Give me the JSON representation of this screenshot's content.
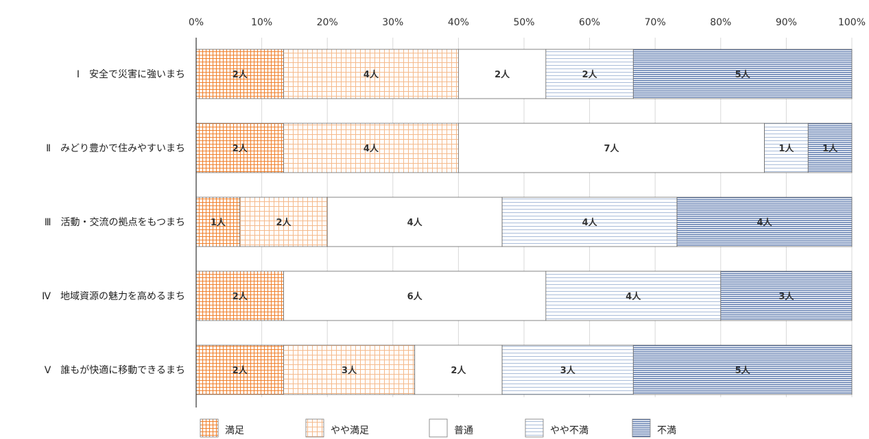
{
  "chart_data": {
    "type": "bar",
    "orientation": "horizontal",
    "stacked": "percent",
    "categories": [
      "Ⅰ　安全で災害に強いまち",
      "Ⅱ　みどり豊かで住みやすいまち",
      "Ⅲ　活動・交流の拠点をもつまち",
      "Ⅳ　地域資源の魅力を高めるまち",
      "Ⅴ　誰もが快適に移動できるまち"
    ],
    "series": [
      {
        "name": "満足",
        "values": [
          2,
          2,
          1,
          2,
          2
        ],
        "color": "#f28c3c",
        "pattern": "grid-dense"
      },
      {
        "name": "やや満足",
        "values": [
          4,
          4,
          2,
          0,
          3
        ],
        "color": "#f5c49a",
        "pattern": "grid-sparse"
      },
      {
        "name": "普通",
        "values": [
          2,
          7,
          4,
          6,
          2
        ],
        "color": "#ffffff",
        "pattern": "none"
      },
      {
        "name": "やや不満",
        "values": [
          2,
          1,
          4,
          4,
          3
        ],
        "color": "#b9c9e2",
        "pattern": "lines-sparse"
      },
      {
        "name": "不満",
        "values": [
          5,
          1,
          4,
          3,
          5
        ],
        "color": "#5f7fb5",
        "pattern": "lines-dense"
      }
    ],
    "value_suffix": "人",
    "xticks": [
      "0%",
      "10%",
      "20%",
      "30%",
      "40%",
      "50%",
      "60%",
      "70%",
      "80%",
      "90%",
      "100%"
    ],
    "xlim": [
      0,
      100
    ],
    "grid": true,
    "legend_position": "bottom"
  }
}
